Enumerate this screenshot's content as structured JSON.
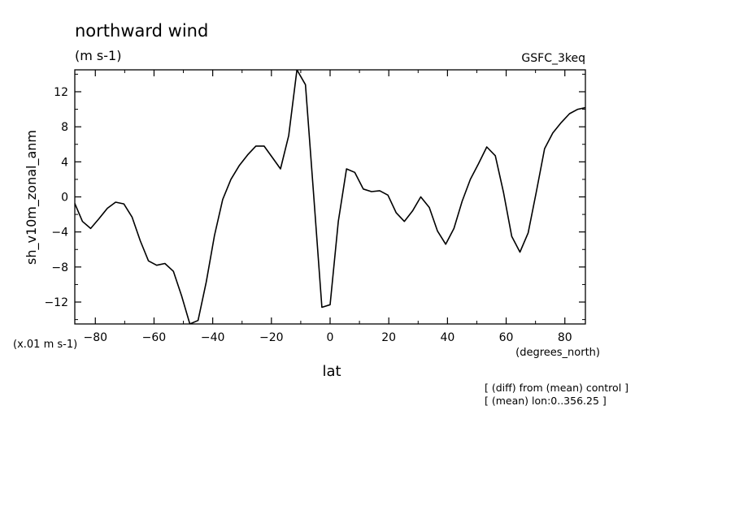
{
  "chart_data": {
    "type": "line",
    "title": "northward wind",
    "units": "(m s-1)",
    "model": "GSFC_3keq",
    "xlabel": "lat",
    "x_units": "(degrees_north)",
    "ylabel": "sh_v10m_zonal_anm",
    "y_scale_note": "(x.01 m s-1)",
    "xlim": [
      -87,
      87
    ],
    "ylim": [
      -14.5,
      14.5
    ],
    "xticks": [
      -80,
      -60,
      -40,
      -20,
      0,
      20,
      40,
      60,
      80
    ],
    "yticks": [
      -12,
      -8,
      -4,
      0,
      4,
      8,
      12
    ],
    "grid": false,
    "x": [
      -87.2,
      -84.4,
      -81.6,
      -78.8,
      -75.9,
      -73.1,
      -70.3,
      -67.5,
      -64.7,
      -61.9,
      -59.1,
      -56.3,
      -53.4,
      -50.6,
      -47.8,
      -45.0,
      -42.2,
      -39.4,
      -36.6,
      -33.8,
      -30.9,
      -28.1,
      -25.3,
      -22.5,
      -19.7,
      -16.9,
      -14.1,
      -11.3,
      -8.4,
      -5.6,
      -2.8,
      0.0,
      2.8,
      5.6,
      8.4,
      11.3,
      14.1,
      16.9,
      19.7,
      22.5,
      25.3,
      28.1,
      30.9,
      33.8,
      36.6,
      39.4,
      42.2,
      45.0,
      47.8,
      50.6,
      53.4,
      56.3,
      59.1,
      61.9,
      64.7,
      67.5,
      70.3,
      73.1,
      75.9,
      78.8,
      81.6,
      84.4,
      87.2
    ],
    "series": [
      {
        "values": [
          -0.6,
          -2.8,
          -3.6,
          -2.5,
          -1.3,
          -0.6,
          -0.8,
          -2.3,
          -5.0,
          -7.3,
          -7.8,
          -7.6,
          -8.5,
          -11.3,
          -14.5,
          -14.1,
          -9.7,
          -4.4,
          -0.3,
          2.0,
          3.6,
          4.8,
          5.8,
          5.8,
          4.5,
          3.2,
          7.0,
          14.5,
          12.8,
          0.2,
          -12.6,
          -12.3,
          -2.8,
          3.2,
          2.8,
          0.9,
          0.6,
          0.7,
          0.2,
          -1.8,
          -2.8,
          -1.6,
          0.0,
          -1.2,
          -3.9,
          -5.4,
          -3.6,
          -0.5,
          2.0,
          3.8,
          5.7,
          4.7,
          0.5,
          -4.5,
          -6.3,
          -4.1,
          0.6,
          5.5,
          7.3,
          8.5,
          9.5,
          10.0,
          10.2
        ],
        "color": "#000000"
      }
    ]
  },
  "footnotes": [
    "[ (diff) from (mean) control ]",
    "[ (mean) lon:0..356.25 ]"
  ]
}
